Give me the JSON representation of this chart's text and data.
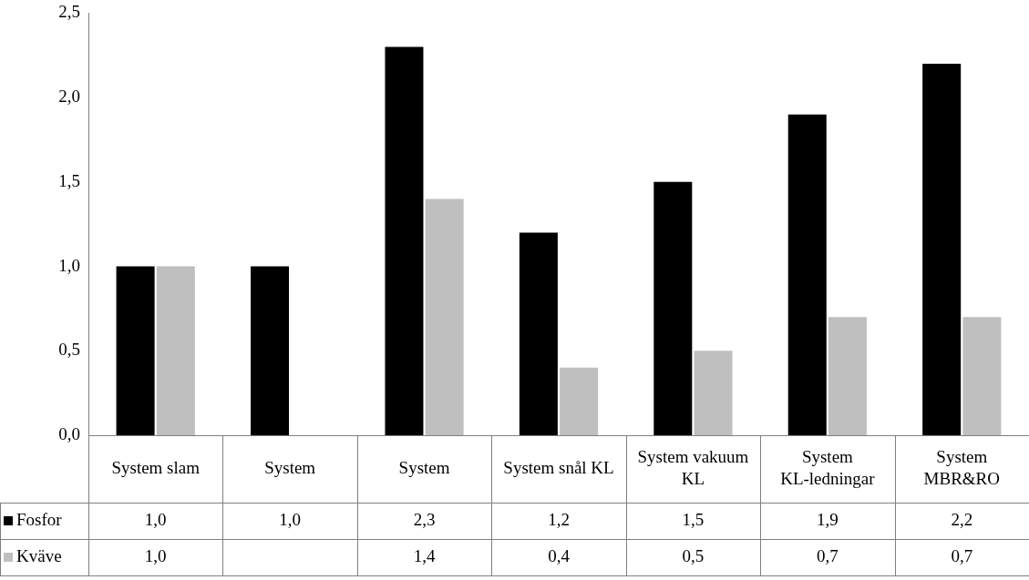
{
  "chart_data": {
    "type": "bar",
    "categories": [
      "System slam",
      "System",
      "System",
      "System snål KL",
      "System vakuum KL",
      "System KL-ledningar",
      "System MBR&RO"
    ],
    "series": [
      {
        "name": "Fosfor",
        "color": "#000000",
        "values": [
          1.0,
          1.0,
          2.3,
          1.2,
          1.5,
          1.9,
          2.2
        ],
        "value_labels": [
          "1,0",
          "1,0",
          "2,3",
          "1,2",
          "1,5",
          "1,9",
          "2,2"
        ]
      },
      {
        "name": "Kväve",
        "color": "#bfbfbf",
        "values": [
          1.0,
          null,
          1.4,
          0.4,
          0.5,
          0.7,
          0.7
        ],
        "value_labels": [
          "1,0",
          null,
          "1,4",
          "0,4",
          "0,5",
          "0,7",
          "0,7"
        ]
      }
    ],
    "ylim": [
      0,
      2.5
    ],
    "yticks": [
      {
        "value": 0,
        "label": "0,0"
      },
      {
        "value": 0.5,
        "label": "0,5"
      },
      {
        "value": 1,
        "label": "1,0"
      },
      {
        "value": 1.5,
        "label": "1,5"
      },
      {
        "value": 2,
        "label": "2,0"
      },
      {
        "value": 2.5,
        "label": "2,5"
      }
    ],
    "grid": false,
    "legend": "bottom left"
  }
}
